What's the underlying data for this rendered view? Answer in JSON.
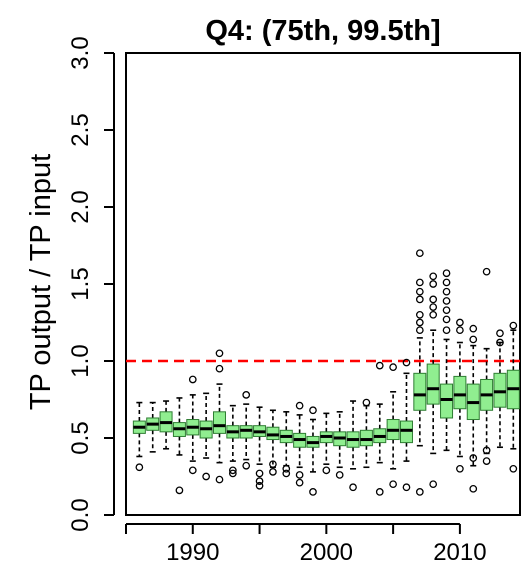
{
  "chart_data": {
    "type": "box",
    "title": "Q4: (75th, 99.5th]",
    "xlabel": "",
    "ylabel": "TP output / TP input",
    "xlim": [
      1985,
      2014.5
    ],
    "ylim": [
      0.0,
      3.0
    ],
    "x_ticks": [
      1990,
      2000,
      2010
    ],
    "y_ticks": [
      0.0,
      0.5,
      1.0,
      1.5,
      2.0,
      2.5,
      3.0
    ],
    "y_tick_labels": [
      "0.0",
      "0.5",
      "1.0",
      "1.5",
      "2.0",
      "2.5",
      "3.0"
    ],
    "x_tick_labels": [
      "1990",
      "2000",
      "2010"
    ],
    "reference_line": {
      "y": 1.0,
      "style": "dashed",
      "color": "#ff0000"
    },
    "box_color": "#90ee90",
    "grid": false,
    "boxes": [
      {
        "year": 1986,
        "min": 0.38,
        "q1": 0.53,
        "median": 0.57,
        "q3": 0.61,
        "max": 0.73,
        "outliers": [
          0.31
        ]
      },
      {
        "year": 1987,
        "min": 0.41,
        "q1": 0.55,
        "median": 0.59,
        "q3": 0.63,
        "max": 0.73,
        "outliers": []
      },
      {
        "year": 1988,
        "min": 0.43,
        "q1": 0.54,
        "median": 0.6,
        "q3": 0.67,
        "max": 0.74,
        "outliers": []
      },
      {
        "year": 1989,
        "min": 0.39,
        "q1": 0.51,
        "median": 0.56,
        "q3": 0.6,
        "max": 0.76,
        "outliers": [
          0.16
        ]
      },
      {
        "year": 1990,
        "min": 0.35,
        "q1": 0.52,
        "median": 0.57,
        "q3": 0.62,
        "max": 0.78,
        "outliers": [
          0.88,
          0.29
        ]
      },
      {
        "year": 1991,
        "min": 0.37,
        "q1": 0.5,
        "median": 0.56,
        "q3": 0.61,
        "max": 0.79,
        "outliers": [
          0.25
        ]
      },
      {
        "year": 1992,
        "min": 0.34,
        "q1": 0.53,
        "median": 0.58,
        "q3": 0.67,
        "max": 0.85,
        "outliers": [
          0.95,
          1.05,
          0.23
        ]
      },
      {
        "year": 1993,
        "min": 0.35,
        "q1": 0.5,
        "median": 0.54,
        "q3": 0.58,
        "max": 0.71,
        "outliers": [
          0.29,
          0.27
        ]
      },
      {
        "year": 1994,
        "min": 0.36,
        "q1": 0.5,
        "median": 0.55,
        "q3": 0.58,
        "max": 0.72,
        "outliers": [
          0.78,
          0.32
        ]
      },
      {
        "year": 1995,
        "min": 0.33,
        "q1": 0.51,
        "median": 0.54,
        "q3": 0.58,
        "max": 0.7,
        "outliers": [
          0.27,
          0.22,
          0.19
        ]
      },
      {
        "year": 1996,
        "min": 0.31,
        "q1": 0.49,
        "median": 0.52,
        "q3": 0.57,
        "max": 0.68,
        "outliers": [
          0.33,
          0.28
        ]
      },
      {
        "year": 1997,
        "min": 0.32,
        "q1": 0.47,
        "median": 0.51,
        "q3": 0.55,
        "max": 0.67,
        "outliers": [
          0.3,
          0.27
        ]
      },
      {
        "year": 1998,
        "min": 0.31,
        "q1": 0.44,
        "median": 0.49,
        "q3": 0.53,
        "max": 0.65,
        "outliers": [
          0.71,
          0.26,
          0.21
        ]
      },
      {
        "year": 1999,
        "min": 0.28,
        "q1": 0.44,
        "median": 0.47,
        "q3": 0.51,
        "max": 0.62,
        "outliers": [
          0.68,
          0.15
        ]
      },
      {
        "year": 2000,
        "min": 0.33,
        "q1": 0.47,
        "median": 0.51,
        "q3": 0.54,
        "max": 0.66,
        "outliers": [
          0.29
        ]
      },
      {
        "year": 2001,
        "min": 0.31,
        "q1": 0.45,
        "median": 0.5,
        "q3": 0.54,
        "max": 0.67,
        "outliers": [
          0.26
        ]
      },
      {
        "year": 2002,
        "min": 0.3,
        "q1": 0.44,
        "median": 0.49,
        "q3": 0.54,
        "max": 0.74,
        "outliers": [
          0.18
        ]
      },
      {
        "year": 2003,
        "min": 0.31,
        "q1": 0.45,
        "median": 0.49,
        "q3": 0.55,
        "max": 0.71,
        "outliers": [
          0.73
        ]
      },
      {
        "year": 2004,
        "min": 0.34,
        "q1": 0.47,
        "median": 0.51,
        "q3": 0.56,
        "max": 0.72,
        "outliers": [
          0.97,
          0.15
        ]
      },
      {
        "year": 2005,
        "min": 0.3,
        "q1": 0.49,
        "median": 0.55,
        "q3": 0.62,
        "max": 0.8,
        "outliers": [
          0.96,
          0.2
        ]
      },
      {
        "year": 2006,
        "min": 0.35,
        "q1": 0.47,
        "median": 0.55,
        "q3": 0.61,
        "max": 0.92,
        "outliers": [
          0.99,
          0.18
        ]
      },
      {
        "year": 2007,
        "min": 0.45,
        "q1": 0.68,
        "median": 0.78,
        "q3": 0.92,
        "max": 1.15,
        "outliers": [
          1.7,
          1.51,
          1.45,
          1.4,
          1.3,
          1.25,
          1.2,
          0.15
        ]
      },
      {
        "year": 2008,
        "min": 0.4,
        "q1": 0.72,
        "median": 0.82,
        "q3": 0.98,
        "max": 1.2,
        "outliers": [
          1.55,
          1.5,
          1.4,
          1.35,
          1.3,
          0.2
        ]
      },
      {
        "year": 2009,
        "min": 0.42,
        "q1": 0.63,
        "median": 0.75,
        "q3": 0.85,
        "max": 1.14,
        "outliers": [
          1.57,
          1.51,
          1.45,
          1.39,
          1.33,
          1.27,
          1.2
        ]
      },
      {
        "year": 2010,
        "min": 0.38,
        "q1": 0.69,
        "median": 0.78,
        "q3": 0.9,
        "max": 1.12,
        "outliers": [
          1.25,
          1.2,
          0.3
        ]
      },
      {
        "year": 2011,
        "min": 0.32,
        "q1": 0.62,
        "median": 0.73,
        "q3": 0.85,
        "max": 1.1,
        "outliers": [
          1.21,
          1.14,
          0.37,
          0.17
        ]
      },
      {
        "year": 2012,
        "min": 0.4,
        "q1": 0.68,
        "median": 0.78,
        "q3": 0.88,
        "max": 1.08,
        "outliers": [
          1.58,
          0.42,
          0.35
        ]
      },
      {
        "year": 2013,
        "min": 0.44,
        "q1": 0.7,
        "median": 0.8,
        "q3": 0.92,
        "max": 1.12,
        "outliers": [
          1.18,
          1.12
        ]
      },
      {
        "year": 2014,
        "min": 0.43,
        "q1": 0.69,
        "median": 0.82,
        "q3": 0.94,
        "max": 1.2,
        "outliers": [
          1.23,
          0.3
        ]
      }
    ]
  }
}
